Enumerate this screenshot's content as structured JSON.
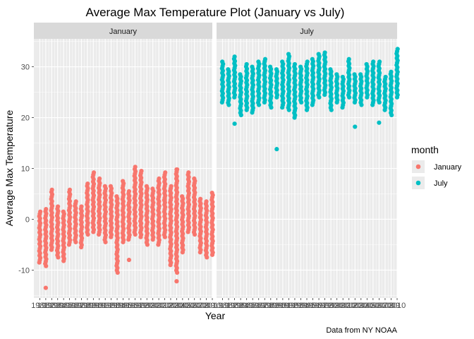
{
  "chart_data": {
    "type": "scatter",
    "title": "Average Max Temperature Plot (January vs July)",
    "xlabel": "Year",
    "ylabel": "Average Max Temperature",
    "caption": "Data from NY NOAA",
    "facets": [
      "January",
      "July"
    ],
    "xlim": [
      1980,
      2010
    ],
    "ylim": [
      -15.5,
      35.5
    ],
    "y_ticks": [
      -10,
      0,
      10,
      20,
      30
    ],
    "x_tick_labels": [
      "1981",
      "1982",
      "1983",
      "1984",
      "1985",
      "1986",
      "1987",
      "1988",
      "1989",
      "1990",
      "1991",
      "1992",
      "1993",
      "1994",
      "1995",
      "1996",
      "1997",
      "1998",
      "1999",
      "2000",
      "2001",
      "2002",
      "2003",
      "2004",
      "2005",
      "2006",
      "2007",
      "2008",
      "2009",
      "2010"
    ],
    "legend": {
      "title": "month",
      "position": "right",
      "entries": [
        {
          "label": "January",
          "color": "#F8766D"
        },
        {
          "label": "July",
          "color": "#00BFC4"
        }
      ]
    },
    "series": [
      {
        "name": "January",
        "color": "#F8766D",
        "x": [
          1981,
          1982,
          1983,
          1984,
          1985,
          1986,
          1987,
          1988,
          1989,
          1990,
          1991,
          1992,
          1993,
          1994,
          1995,
          1996,
          1997,
          1998,
          1999,
          2000,
          2001,
          2002,
          2003,
          2004,
          2005,
          2006,
          2007,
          2008,
          2009,
          2010
        ],
        "ymin": [
          -8.5,
          -9.2,
          -6.0,
          -7.5,
          -8.2,
          -5.0,
          -4.5,
          -5.5,
          -3.0,
          -2.5,
          -3.0,
          -4.5,
          -3.5,
          -10.5,
          -4.5,
          -4.0,
          -3.0,
          -3.5,
          -5.0,
          -4.0,
          -5.0,
          -3.5,
          -9.0,
          -10.5,
          -6.5,
          -2.5,
          -3.0,
          -6.5,
          -7.5,
          -7.0
        ],
        "ymax": [
          1.5,
          2.0,
          5.8,
          2.5,
          1.5,
          5.8,
          3.5,
          2.5,
          7.0,
          9.2,
          8.0,
          6.5,
          6.5,
          4.5,
          7.5,
          5.5,
          10.3,
          9.5,
          6.5,
          6.0,
          8.0,
          9.2,
          6.5,
          9.8,
          4.5,
          9.2,
          8.0,
          4.0,
          3.5,
          5.2
        ],
        "outliers": [
          {
            "x": 1982,
            "y": -13.5
          },
          {
            "x": 1996,
            "y": -8.0
          },
          {
            "x": 2002,
            "y": 3.8
          },
          {
            "x": 2004,
            "y": -12.2
          },
          {
            "x": 2004,
            "y": 9.8
          }
        ]
      },
      {
        "name": "July",
        "color": "#00BFC4",
        "x": [
          1981,
          1982,
          1983,
          1984,
          1985,
          1986,
          1987,
          1988,
          1989,
          1990,
          1991,
          1992,
          1993,
          1994,
          1995,
          1996,
          1997,
          1998,
          1999,
          2000,
          2001,
          2002,
          2003,
          2004,
          2005,
          2006,
          2007,
          2008,
          2009,
          2010
        ],
        "ymin": [
          23.0,
          22.5,
          24.0,
          20.5,
          21.5,
          21.0,
          22.5,
          23.0,
          22.0,
          24.0,
          22.0,
          21.5,
          20.0,
          23.0,
          21.5,
          22.5,
          24.0,
          24.5,
          21.5,
          23.0,
          22.0,
          24.0,
          23.0,
          22.5,
          24.0,
          22.5,
          23.0,
          21.5,
          20.5,
          24.0
        ],
        "ymax": [
          31.0,
          29.5,
          32.0,
          28.5,
          30.5,
          30.0,
          31.0,
          31.5,
          30.0,
          29.5,
          31.0,
          32.5,
          30.5,
          30.0,
          31.0,
          31.5,
          32.5,
          32.8,
          29.5,
          28.5,
          28.0,
          31.5,
          28.5,
          28.5,
          30.5,
          31.0,
          31.0,
          28.0,
          29.0,
          33.5
        ],
        "outliers": [
          {
            "x": 1983,
            "y": 18.8
          },
          {
            "x": 1990,
            "y": 13.8
          },
          {
            "x": 2003,
            "y": 18.2
          },
          {
            "x": 2007,
            "y": 19.0
          }
        ]
      }
    ]
  }
}
